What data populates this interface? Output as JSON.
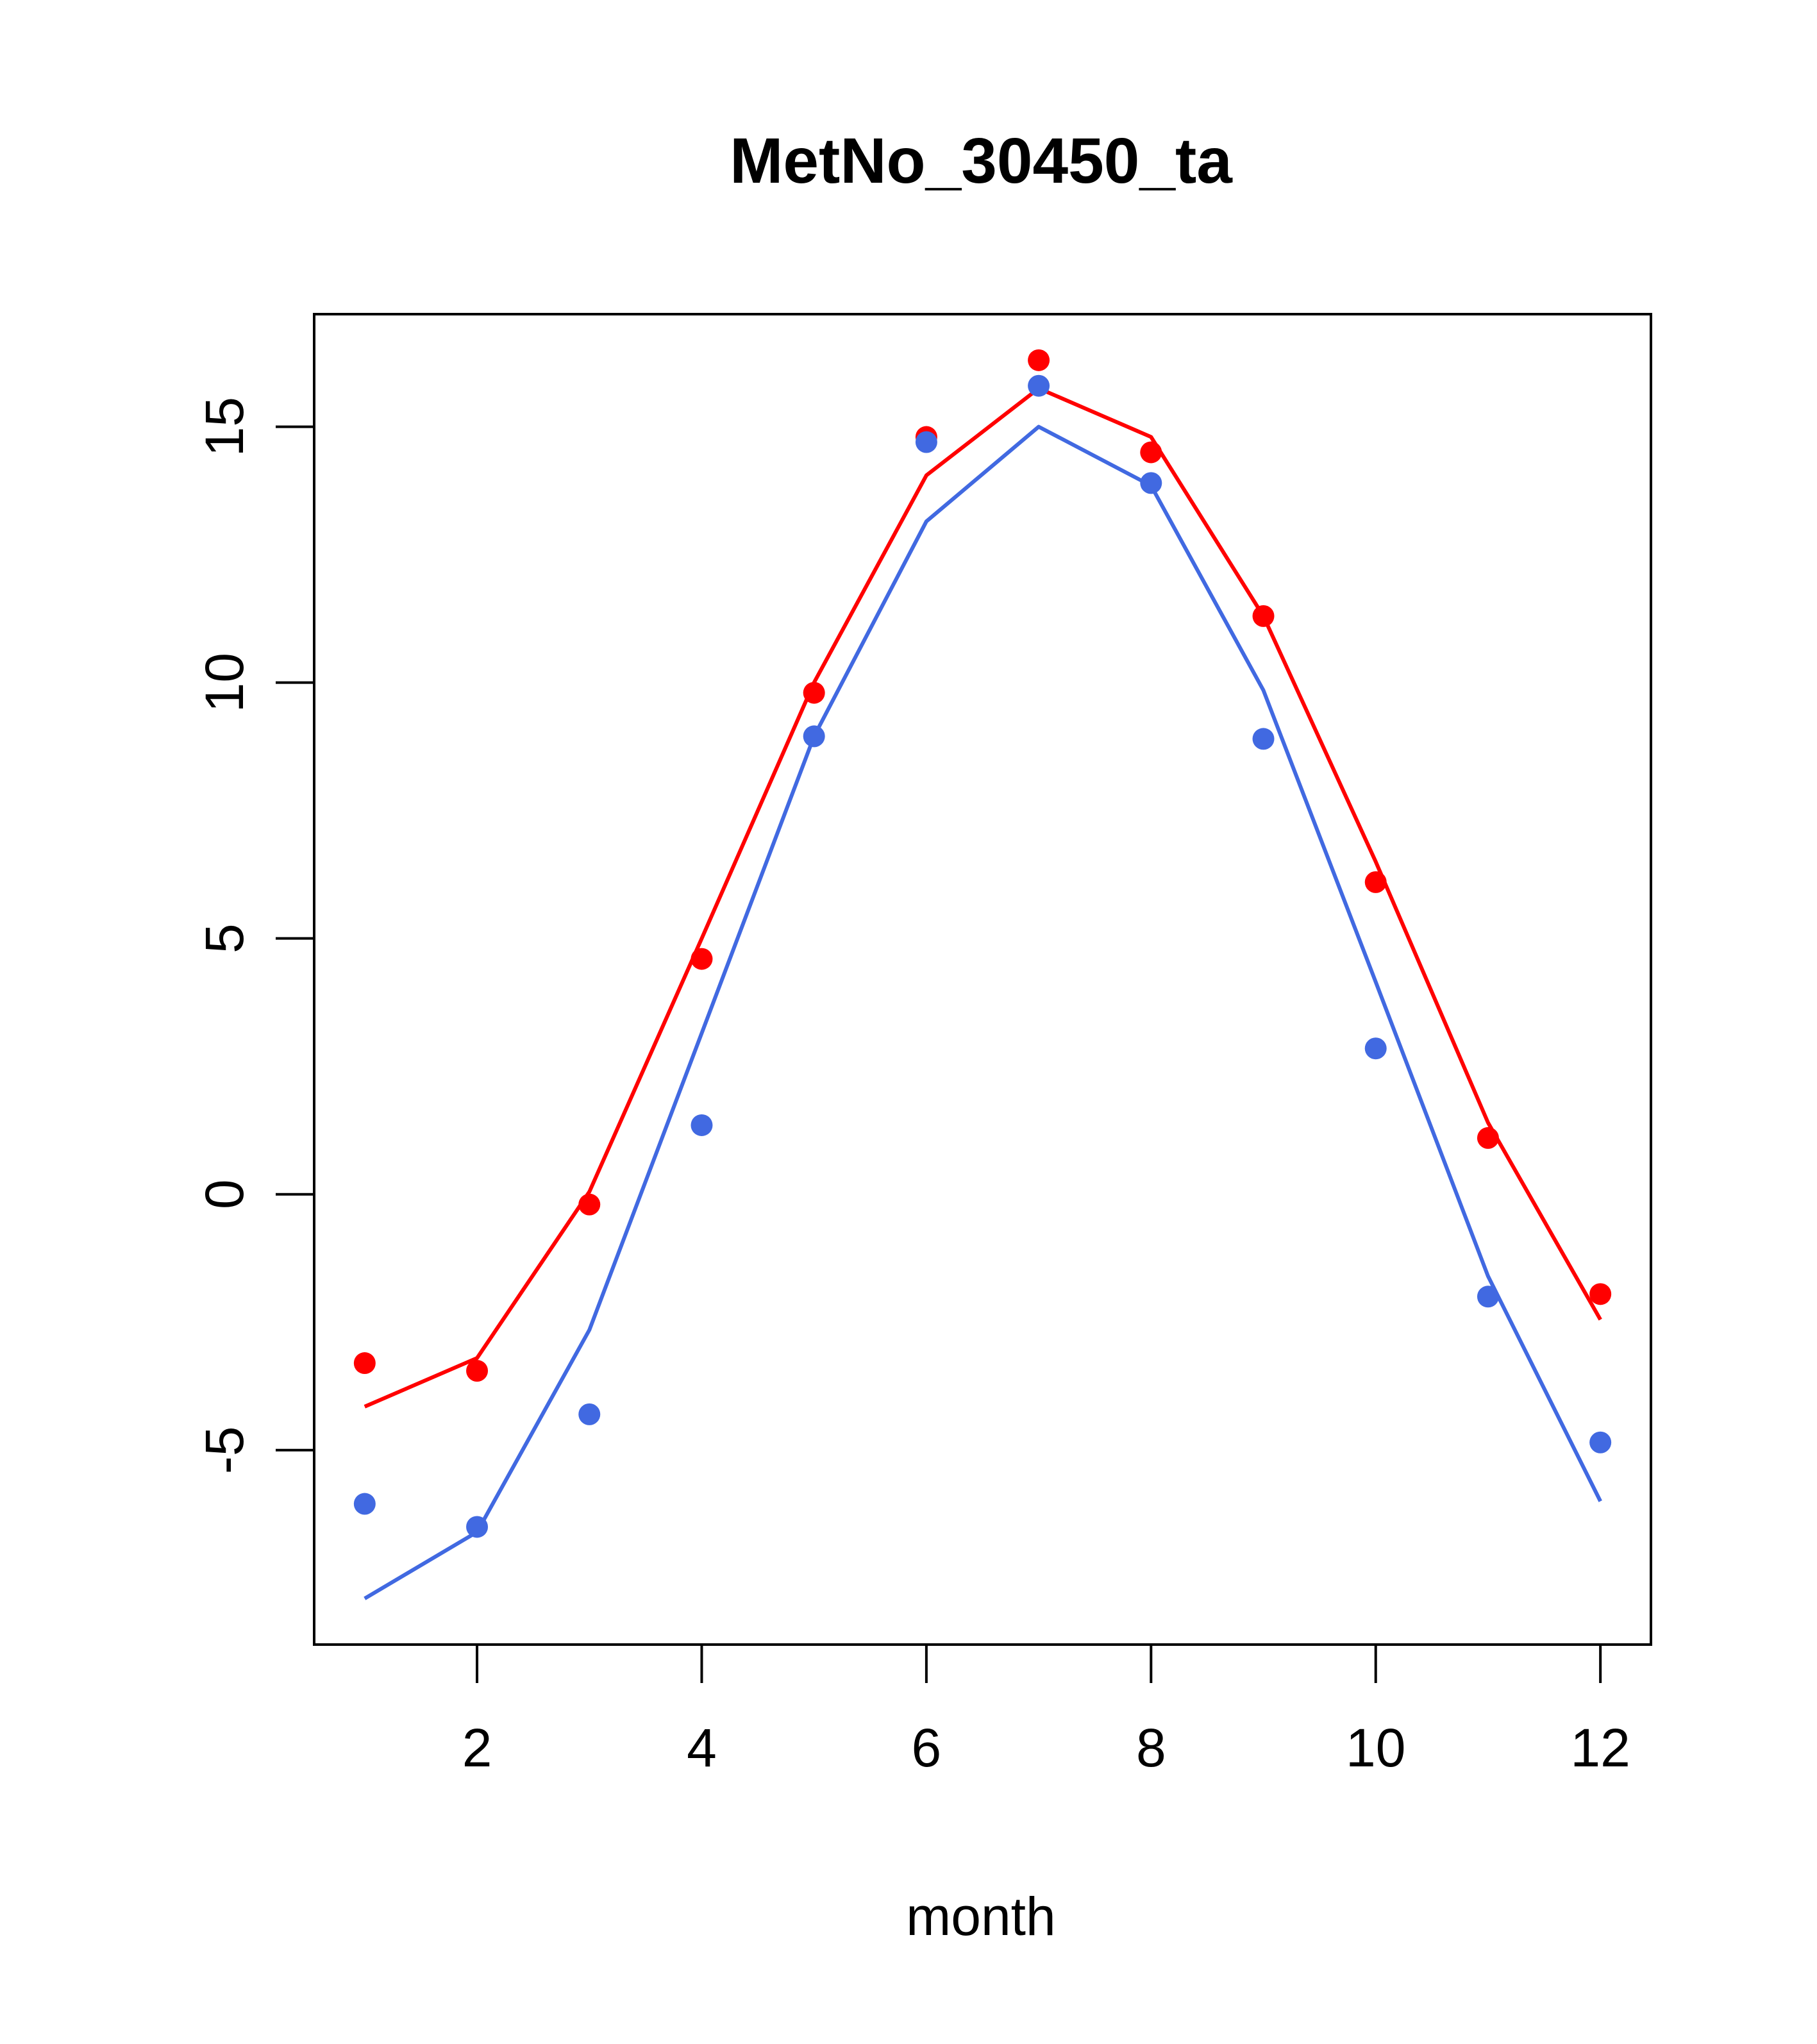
{
  "chart_data": {
    "type": "line",
    "title": "MetNo_30450_ta",
    "xlabel": "month",
    "ylabel": "",
    "xlim": [
      0.55,
      12.45
    ],
    "ylim": [
      -8.8,
      17.2
    ],
    "x_ticks": [
      2,
      4,
      6,
      8,
      10,
      12
    ],
    "y_ticks": [
      -5,
      0,
      5,
      10,
      15
    ],
    "grid": false,
    "legend": "none",
    "x": [
      1,
      2,
      3,
      4,
      5,
      6,
      7,
      8,
      9,
      10,
      11,
      12
    ],
    "series": [
      {
        "color": "#ff0000",
        "points": [
          -3.3,
          -3.45,
          -0.2,
          4.6,
          9.8,
          14.8,
          16.3,
          14.5,
          11.3,
          6.1,
          1.1,
          -1.95
        ],
        "line": [
          -4.15,
          -3.2,
          0.05,
          5.0,
          10.0,
          14.05,
          15.75,
          14.8,
          11.3,
          6.5,
          1.4,
          -2.45
        ]
      },
      {
        "color": "#4169e1",
        "points": [
          -6.05,
          -6.5,
          -4.3,
          1.35,
          8.95,
          14.7,
          15.8,
          13.9,
          8.9,
          2.85,
          -2.0,
          -4.85
        ],
        "line": [
          -7.9,
          -6.6,
          -2.65,
          3.15,
          8.95,
          13.15,
          15.0,
          13.85,
          9.85,
          4.15,
          -1.6,
          -6.0
        ]
      }
    ]
  }
}
